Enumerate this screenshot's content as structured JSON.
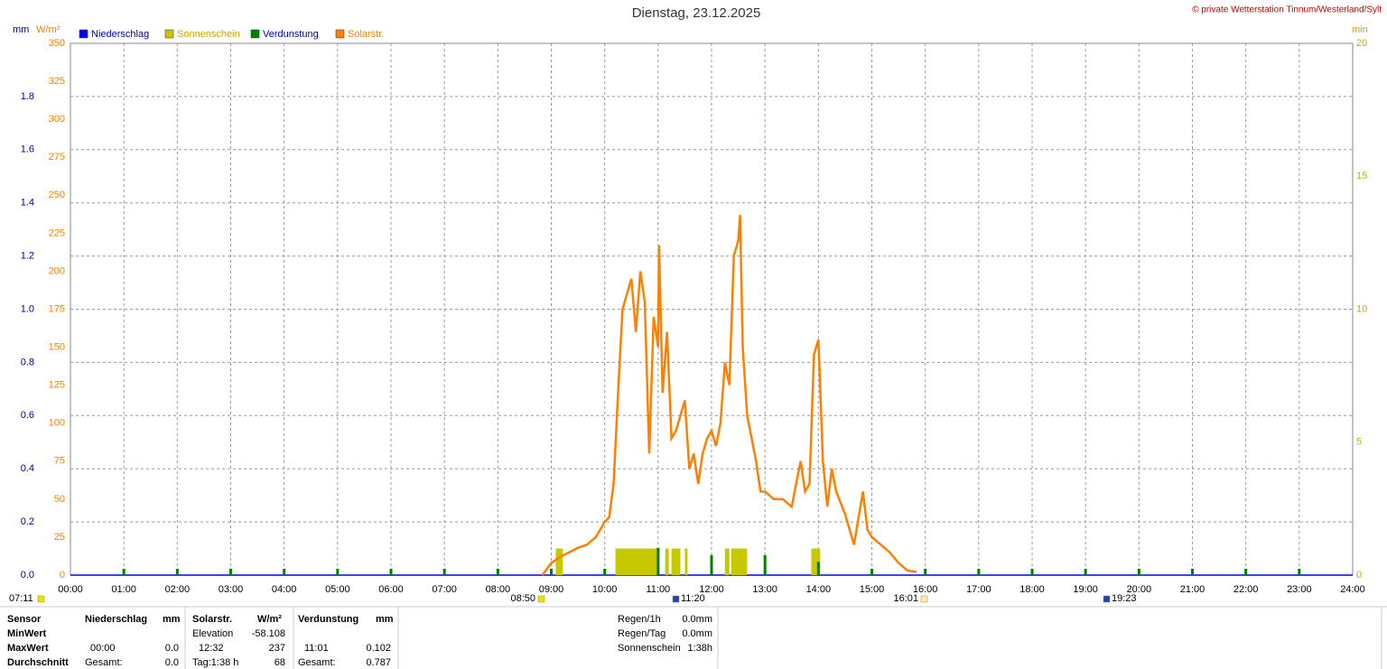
{
  "chart_data": {
    "type": "line",
    "title": "Dienstag, 23.12.2025",
    "copyright": "© private Wetterstation Tinnum/Westerland/Sylt",
    "unit_mm": "mm",
    "unit_w": "W/m²",
    "unit_min": "min",
    "xticks": [
      "00:00",
      "01:00",
      "02:00",
      "03:00",
      "04:00",
      "05:00",
      "06:00",
      "07:00",
      "08:00",
      "09:00",
      "10:00",
      "11:00",
      "12:00",
      "13:00",
      "14:00",
      "15:00",
      "16:00",
      "17:00",
      "18:00",
      "19:00",
      "20:00",
      "21:00",
      "22:00",
      "23:00",
      "24:00"
    ],
    "xlim": [
      "00:00",
      "24:00"
    ],
    "ylim": [
      0,
      350
    ],
    "yticks": [
      0,
      25,
      50,
      75,
      100,
      125,
      150,
      175,
      200,
      225,
      250,
      275,
      300,
      325,
      350
    ],
    "y_mm_lim": [
      0,
      2
    ],
    "y_mm_ticks": [
      {
        "value": 0,
        "label": "0.0"
      },
      {
        "value": 0.2,
        "label": "0.2"
      },
      {
        "value": 0.4,
        "label": "0.4"
      },
      {
        "value": 0.6,
        "label": "0.6"
      },
      {
        "value": 0.8,
        "label": "0.8"
      },
      {
        "value": 1.0,
        "label": "1.0"
      },
      {
        "value": 1.2,
        "label": "1.2"
      },
      {
        "value": 1.4,
        "label": "1.4"
      },
      {
        "value": 1.6,
        "label": "1.6"
      },
      {
        "value": 1.8,
        "label": "1.8"
      }
    ],
    "y_min_lim": [
      0,
      20
    ],
    "y_min_ticks": [
      0,
      5,
      10,
      15,
      20
    ],
    "grid": true,
    "series": [
      {
        "name": "Niederschlag",
        "color": "#0000ff",
        "axis": "y_mm",
        "x": [
          "00:00",
          "24:00"
        ],
        "values": [
          0,
          0
        ]
      },
      {
        "name": "Sonnenschein",
        "color": "#c8c800",
        "axis": "y_min",
        "kind": "span",
        "x": [
          "09:05",
          "10:12",
          "11:08",
          "11:15",
          "11:30",
          "12:15",
          "12:22",
          "13:52"
        ],
        "x_end": [
          "09:13",
          "11:00",
          "11:12",
          "11:25",
          "11:33",
          "12:20",
          "12:40",
          "14:02"
        ],
        "values": [
          1,
          1,
          1,
          1,
          1,
          1,
          1,
          1
        ]
      },
      {
        "name": "Verdunstung",
        "color": "#008000",
        "axis": "y_mm",
        "kind": "bar",
        "x": [
          "01:00",
          "02:00",
          "03:00",
          "04:00",
          "05:00",
          "06:00",
          "07:00",
          "08:00",
          "09:00",
          "10:00",
          "11:00",
          "12:00",
          "13:00",
          "14:00",
          "15:00",
          "16:00",
          "17:00",
          "18:00",
          "19:00",
          "20:00",
          "21:00",
          "22:00",
          "23:00"
        ],
        "values": [
          0.024,
          0.024,
          0.024,
          0.024,
          0.024,
          0.024,
          0.024,
          0.024,
          0.024,
          0.024,
          0.102,
          0.075,
          0.075,
          0.05,
          0.024,
          0.024,
          0.024,
          0.024,
          0.024,
          0.024,
          0.024,
          0.024,
          0.024
        ]
      },
      {
        "name": "Solarstr.",
        "color": "#ff8000",
        "axis": "y",
        "x": [
          "08:50",
          "09:00",
          "09:10",
          "09:20",
          "09:30",
          "09:40",
          "09:50",
          "10:00",
          "10:05",
          "10:10",
          "10:15",
          "10:20",
          "10:25",
          "10:30",
          "10:35",
          "10:40",
          "10:45",
          "10:50",
          "10:55",
          "11:00",
          "11:01",
          "11:05",
          "11:10",
          "11:15",
          "11:20",
          "11:25",
          "11:30",
          "11:35",
          "11:40",
          "11:45",
          "11:50",
          "11:55",
          "12:00",
          "12:05",
          "12:10",
          "12:15",
          "12:20",
          "12:25",
          "12:30",
          "12:32",
          "12:35",
          "12:40",
          "12:45",
          "12:50",
          "12:55",
          "13:00",
          "13:10",
          "13:20",
          "13:30",
          "13:40",
          "13:45",
          "13:50",
          "13:55",
          "14:00",
          "14:05",
          "14:10",
          "14:15",
          "14:20",
          "14:30",
          "14:40",
          "14:50",
          "14:55",
          "15:00",
          "15:10",
          "15:20",
          "15:30",
          "15:40",
          "15:50"
        ],
        "values": [
          0,
          8,
          12,
          15,
          18,
          20,
          25,
          35,
          38,
          60,
          120,
          175,
          185,
          195,
          160,
          200,
          180,
          80,
          170,
          150,
          217,
          120,
          160,
          90,
          95,
          105,
          115,
          70,
          80,
          60,
          80,
          90,
          95,
          85,
          100,
          140,
          125,
          210,
          220,
          237,
          150,
          105,
          90,
          75,
          55,
          55,
          50,
          50,
          45,
          75,
          55,
          60,
          145,
          155,
          75,
          45,
          70,
          55,
          40,
          20,
          55,
          30,
          25,
          20,
          15,
          8,
          3,
          2
        ]
      }
    ],
    "annotations": [
      "07:11",
      "08:50",
      "11:20",
      "16:01",
      "19:23"
    ]
  },
  "stats": {
    "header": [
      "Sensor",
      "Niederschlag",
      "mm",
      "Solarstr.",
      "W/m²",
      "Verdunstung",
      "mm"
    ],
    "min": {
      "label": "MinWert",
      "elev_label": "Elevation",
      "elev": "-58.108"
    },
    "max": {
      "label": "MaxWert",
      "rain_time": "00:00",
      "rain": "0.0",
      "solar_time": "12:32",
      "solar": "237",
      "evap_time": "11:01",
      "evap": "0.102"
    },
    "avg": {
      "label": "Durchschnitt",
      "rain_label": "Gesamt:",
      "rain": "0.0",
      "solar_label": "Tag:1:38 h",
      "solar": "68",
      "evap_label": "Gesamt:",
      "evap": "0.787"
    }
  },
  "summary": {
    "rows": [
      [
        "Regen/1h",
        "0.0mm"
      ],
      [
        "Regen/Tag",
        "0.0mm"
      ],
      [
        "Sonnenschein",
        "1:38h"
      ]
    ]
  }
}
